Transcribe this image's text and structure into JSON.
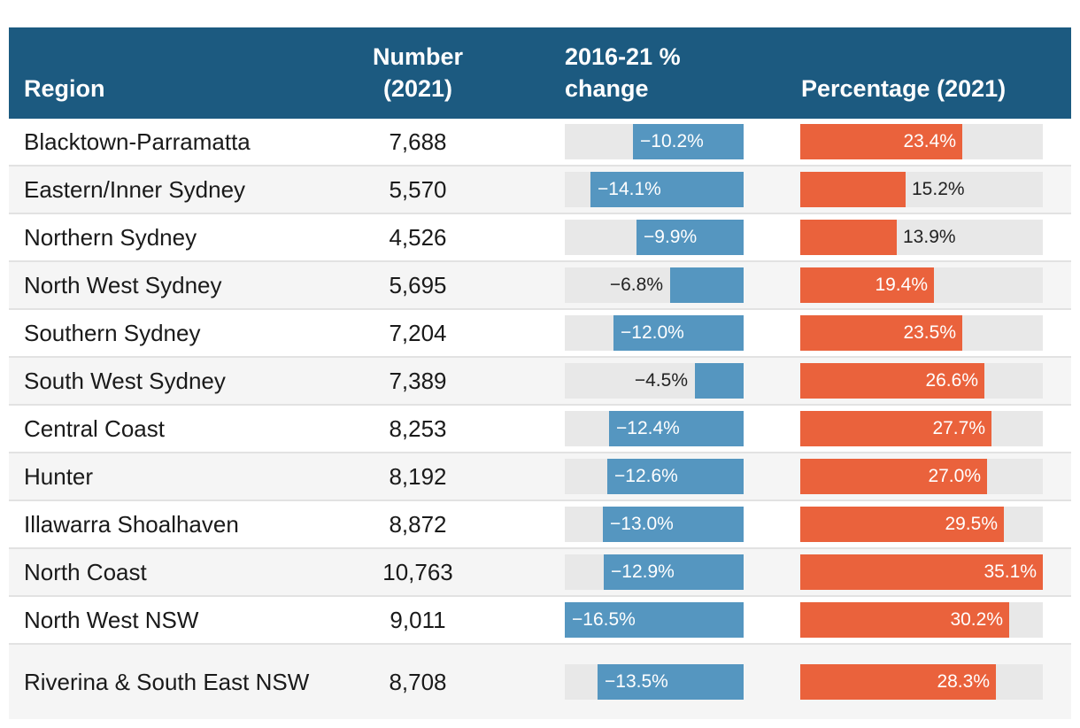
{
  "chart_data": {
    "type": "table",
    "columns": [
      "Region",
      "Number (2021)",
      "2016-21 % change",
      "Percentage (2021)"
    ],
    "column_label_lines": {
      "region": [
        "Region"
      ],
      "number": [
        "Number",
        "(2021)"
      ],
      "change": [
        "2016-21 %",
        "change"
      ],
      "pct": [
        "Percentage (2021)"
      ]
    },
    "change_max_abs": 16.5,
    "pct_max": 35.1,
    "colors": {
      "header": "#1c5a80",
      "change_bar": "#5596c0",
      "pct_bar": "#ea623c",
      "track": "#e8e8e8"
    },
    "rows": [
      {
        "region": "Blacktown-Parramatta",
        "number": "7,688",
        "change": -10.2,
        "change_label": "−10.2%",
        "pct": 23.4,
        "pct_label": "23.4%"
      },
      {
        "region": "Eastern/Inner Sydney",
        "number": "5,570",
        "change": -14.1,
        "change_label": "−14.1%",
        "pct": 15.2,
        "pct_label": "15.2%"
      },
      {
        "region": "Northern Sydney",
        "number": "4,526",
        "change": -9.9,
        "change_label": "−9.9%",
        "pct": 13.9,
        "pct_label": "13.9%"
      },
      {
        "region": "North West Sydney",
        "number": "5,695",
        "change": -6.8,
        "change_label": "−6.8%",
        "pct": 19.4,
        "pct_label": "19.4%"
      },
      {
        "region": "Southern Sydney",
        "number": "7,204",
        "change": -12.0,
        "change_label": "−12.0%",
        "pct": 23.5,
        "pct_label": "23.5%"
      },
      {
        "region": "South West Sydney",
        "number": "7,389",
        "change": -4.5,
        "change_label": "−4.5%",
        "pct": 26.6,
        "pct_label": "26.6%"
      },
      {
        "region": "Central Coast",
        "number": "8,253",
        "change": -12.4,
        "change_label": "−12.4%",
        "pct": 27.7,
        "pct_label": "27.7%"
      },
      {
        "region": "Hunter",
        "number": "8,192",
        "change": -12.6,
        "change_label": "−12.6%",
        "pct": 27.0,
        "pct_label": "27.0%"
      },
      {
        "region": "Illawarra Shoalhaven",
        "number": "8,872",
        "change": -13.0,
        "change_label": "−13.0%",
        "pct": 29.5,
        "pct_label": "29.5%"
      },
      {
        "region": "North Coast",
        "number": "10,763",
        "change": -12.9,
        "change_label": "−12.9%",
        "pct": 35.1,
        "pct_label": "35.1%"
      },
      {
        "region": "North West NSW",
        "number": "9,011",
        "change": -16.5,
        "change_label": "−16.5%",
        "pct": 30.2,
        "pct_label": "30.2%"
      },
      {
        "region": "Riverina & South East NSW",
        "number": "8,708",
        "change": -13.5,
        "change_label": "−13.5%",
        "pct": 28.3,
        "pct_label": "28.3%"
      }
    ]
  }
}
